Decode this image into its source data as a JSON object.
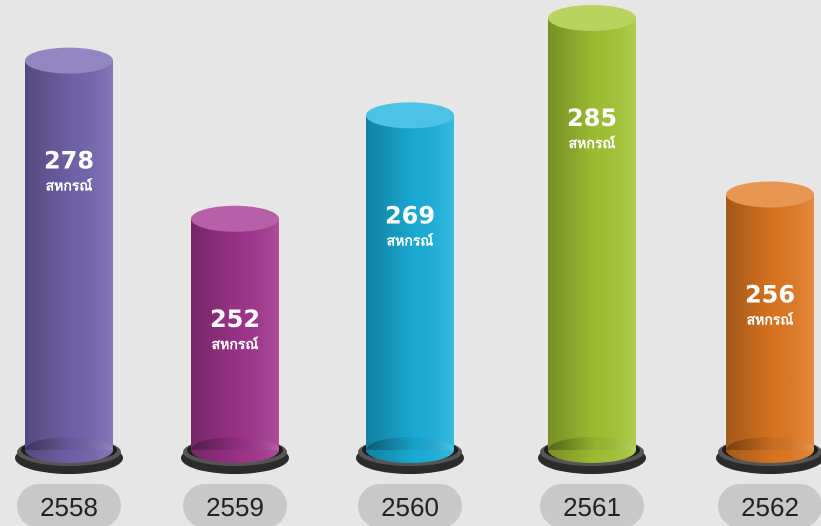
{
  "chart_data": {
    "type": "cylinder-bar",
    "categories": [
      "2558",
      "2559",
      "2560",
      "2561",
      "2562"
    ],
    "values": [
      278,
      252,
      269,
      285,
      256
    ],
    "unit": "สหกรณ์",
    "colors": [
      "#7566b0",
      "#a2358f",
      "#1ab2de",
      "#a6c634",
      "#e27a22"
    ],
    "ylim": [
      214,
      285
    ]
  }
}
